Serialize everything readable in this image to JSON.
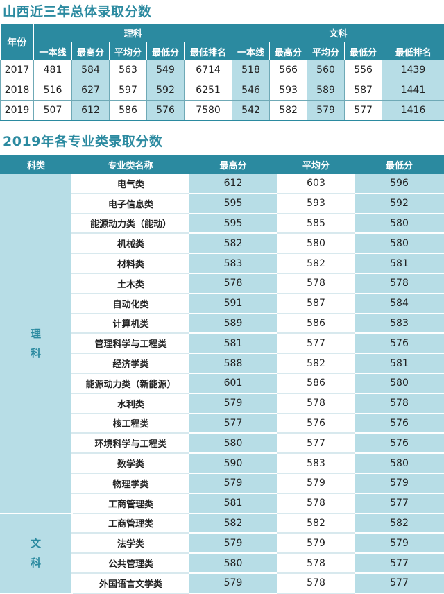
{
  "section1": {
    "title": "山西近三年总体录取分数",
    "header": {
      "year": "年份",
      "groups": [
        "理科",
        "文科"
      ],
      "columns": [
        "一本线",
        "最高分",
        "平均分",
        "最低分",
        "最低排名",
        "一本线",
        "最高分",
        "平均分",
        "最低分",
        "最低排名"
      ]
    },
    "rows": [
      {
        "year": "2017",
        "values": [
          "481",
          "584",
          "563",
          "549",
          "6714",
          "518",
          "566",
          "560",
          "556",
          "1439"
        ]
      },
      {
        "year": "2018",
        "values": [
          "516",
          "627",
          "597",
          "592",
          "6251",
          "546",
          "593",
          "589",
          "587",
          "1441"
        ]
      },
      {
        "year": "2019",
        "values": [
          "507",
          "612",
          "586",
          "576",
          "7580",
          "542",
          "582",
          "579",
          "577",
          "1416"
        ]
      }
    ]
  },
  "section2": {
    "title": "2019年各专业类录取分数",
    "header": [
      "科类",
      "专业类名称",
      "最高分",
      "平均分",
      "最低分"
    ],
    "groups": [
      {
        "category": "理\n科",
        "rows": [
          {
            "name": "电气类",
            "max": "612",
            "avg": "603",
            "min": "596"
          },
          {
            "name": "电子信息类",
            "max": "595",
            "avg": "593",
            "min": "592"
          },
          {
            "name": "能源动力类（能动）",
            "max": "595",
            "avg": "585",
            "min": "580"
          },
          {
            "name": "机械类",
            "max": "582",
            "avg": "580",
            "min": "580"
          },
          {
            "name": "材料类",
            "max": "583",
            "avg": "582",
            "min": "581"
          },
          {
            "name": "土木类",
            "max": "578",
            "avg": "578",
            "min": "578"
          },
          {
            "name": "自动化类",
            "max": "591",
            "avg": "587",
            "min": "584"
          },
          {
            "name": "计算机类",
            "max": "589",
            "avg": "586",
            "min": "583"
          },
          {
            "name": "管理科学与工程类",
            "max": "581",
            "avg": "577",
            "min": "576"
          },
          {
            "name": "经济学类",
            "max": "588",
            "avg": "582",
            "min": "581"
          },
          {
            "name": "能源动力类（新能源）",
            "max": "601",
            "avg": "586",
            "min": "580"
          },
          {
            "name": "水利类",
            "max": "579",
            "avg": "578",
            "min": "578"
          },
          {
            "name": "核工程类",
            "max": "577",
            "avg": "576",
            "min": "576"
          },
          {
            "name": "环境科学与工程类",
            "max": "580",
            "avg": "577",
            "min": "576"
          },
          {
            "name": "数学类",
            "max": "590",
            "avg": "583",
            "min": "580"
          },
          {
            "name": "物理学类",
            "max": "579",
            "avg": "579",
            "min": "579"
          },
          {
            "name": "工商管理类",
            "max": "581",
            "avg": "578",
            "min": "577"
          }
        ]
      },
      {
        "category": "文\n科",
        "rows": [
          {
            "name": "工商管理类",
            "max": "582",
            "avg": "582",
            "min": "582"
          },
          {
            "name": "法学类",
            "max": "579",
            "avg": "579",
            "min": "579"
          },
          {
            "name": "公共管理类",
            "max": "580",
            "avg": "578",
            "min": "577"
          },
          {
            "name": "外国语言文学类",
            "max": "579",
            "avg": "578",
            "min": "577"
          }
        ]
      }
    ]
  }
}
